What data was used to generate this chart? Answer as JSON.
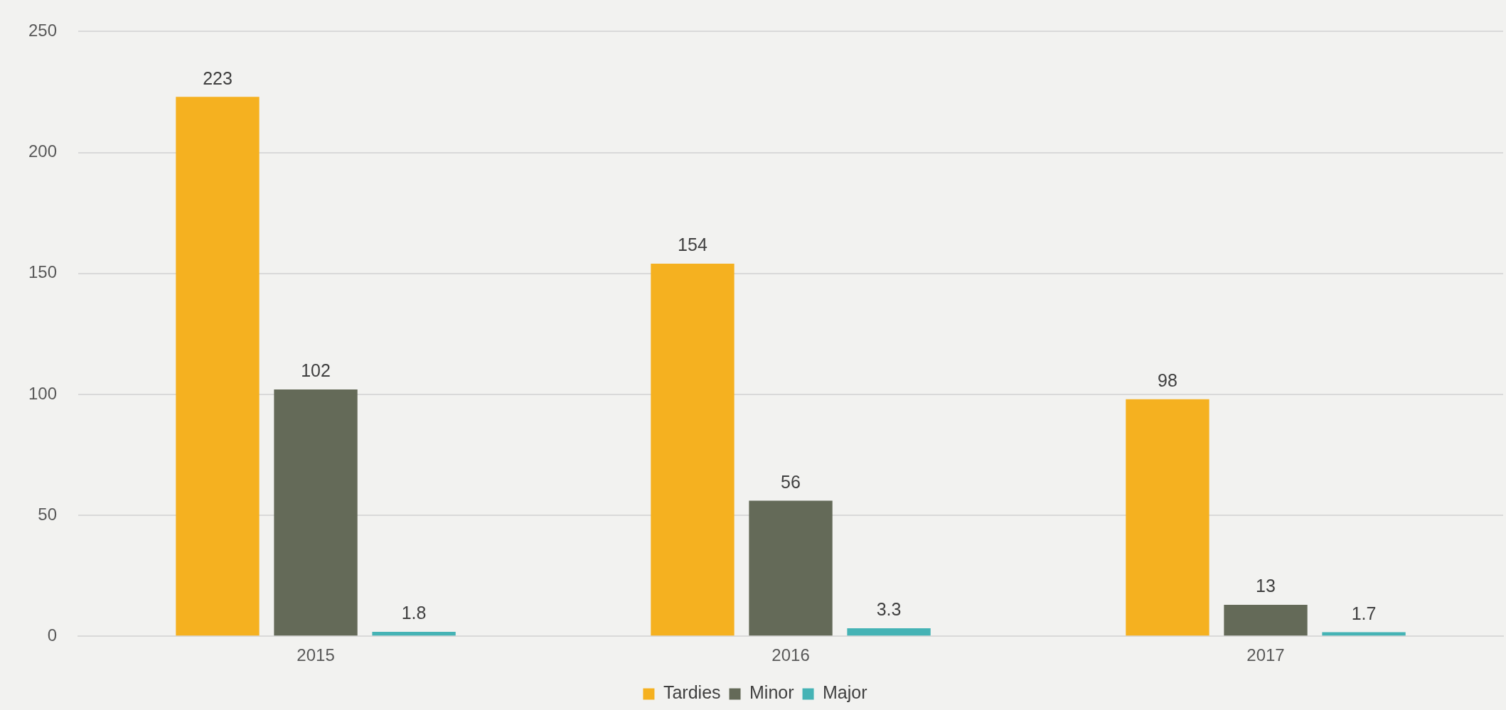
{
  "chart_data": {
    "type": "bar",
    "categories": [
      "2015",
      "2016",
      "2017"
    ],
    "series": [
      {
        "name": "Tardies",
        "color": "#f5b120",
        "values": [
          223,
          154,
          98
        ]
      },
      {
        "name": "Minor",
        "color": "#646a58",
        "values": [
          102,
          56,
          13
        ]
      },
      {
        "name": "Major",
        "color": "#45b3b5",
        "values": [
          1.8,
          3.3,
          1.7
        ]
      }
    ],
    "ylim": [
      0,
      250
    ],
    "yticks": [
      0,
      50,
      100,
      150,
      200,
      250
    ],
    "grid": "y",
    "legend": "bottom",
    "data_labels": true
  }
}
